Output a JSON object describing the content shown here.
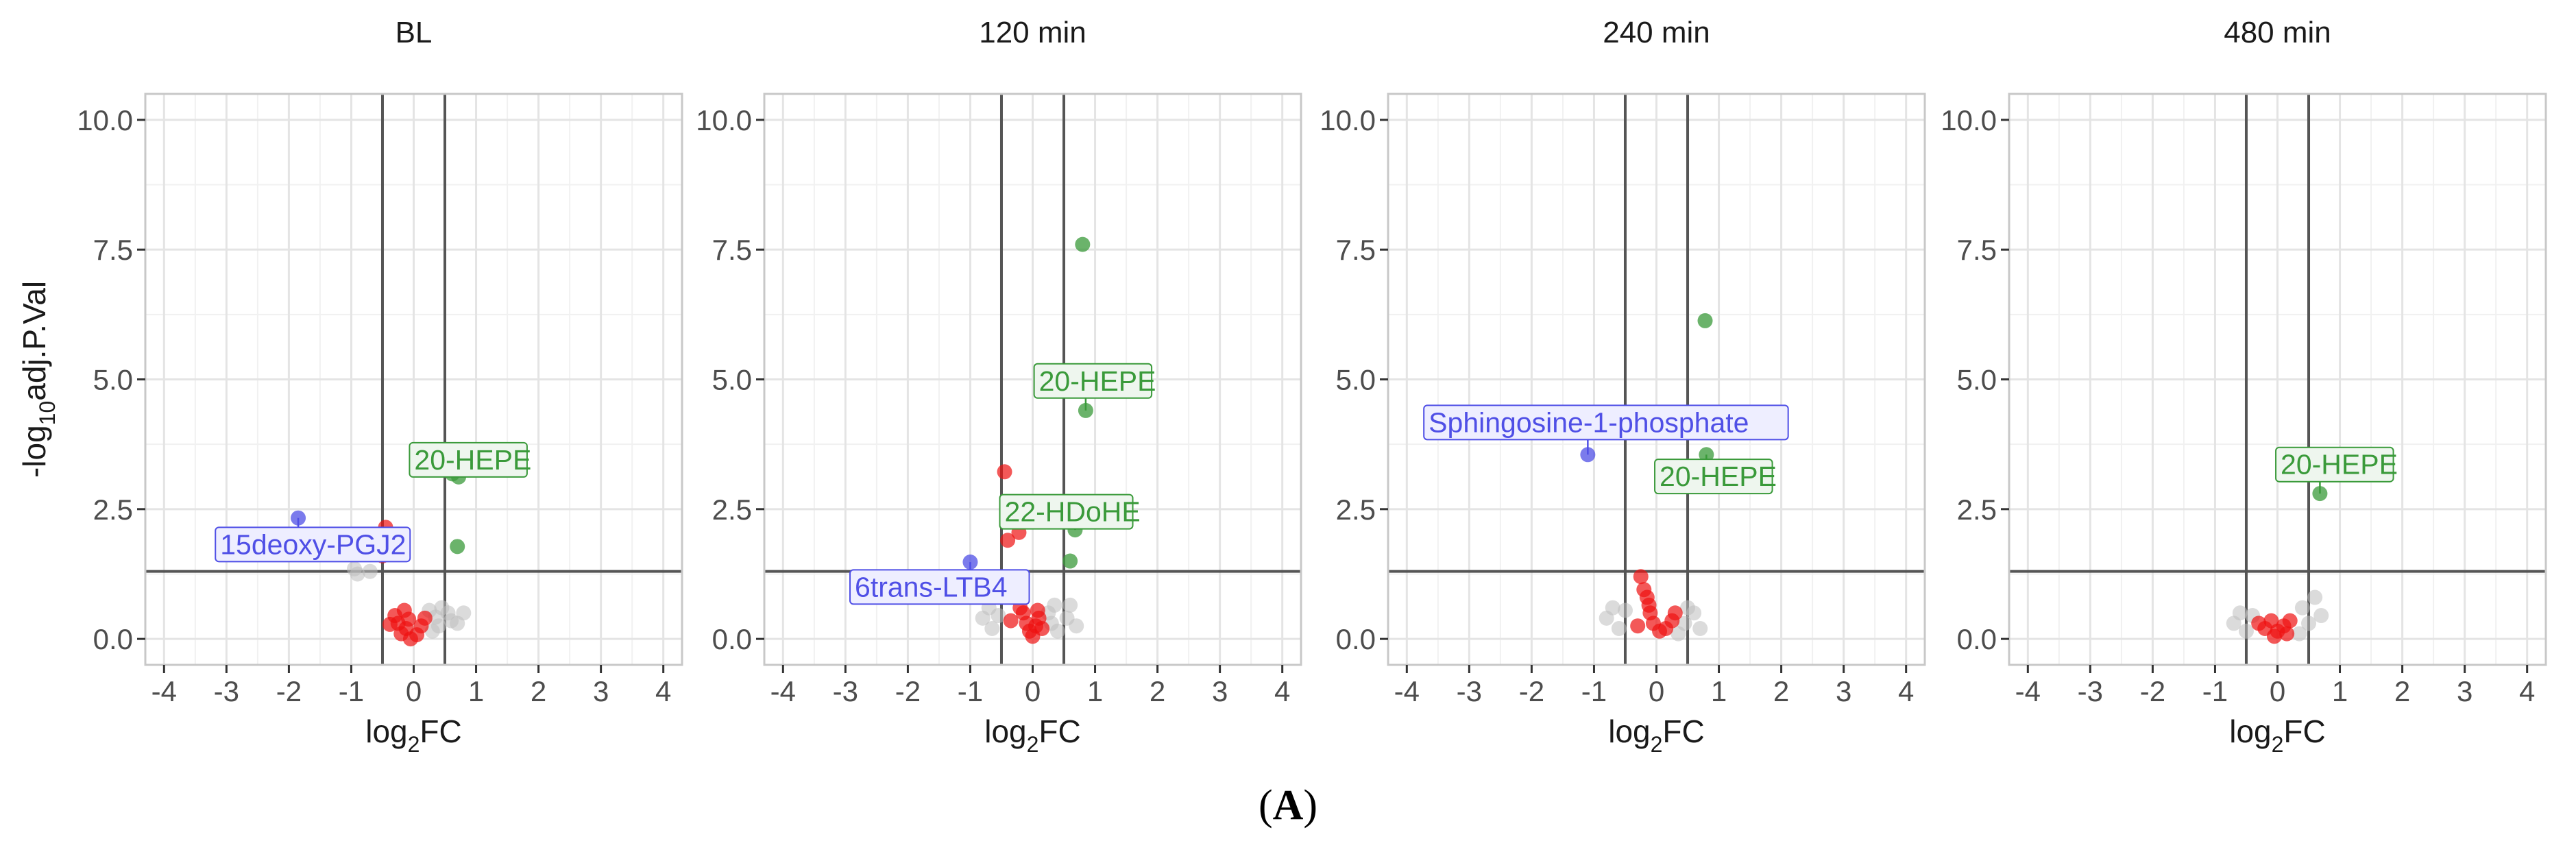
{
  "colors": {
    "up": "#3a9a3a",
    "down": "#4f4fe6",
    "ns_near": "#ee1111",
    "ns_far": "#bdbdbd",
    "threshold_line": "#555555",
    "grid_major": "#e4e4e4",
    "grid_minor": "#f1f1f1",
    "panel_border": "#c8c8c8",
    "label_up_fill": "#eef6ee",
    "label_down_fill": "#eeeeff"
  },
  "figure_label": {
    "open": "(",
    "letter": "A",
    "close": ")"
  },
  "chart_data": [
    {
      "type": "scatter",
      "title": "BL",
      "xlabel_main": "log",
      "xlabel_sub": "2",
      "xlabel_end": "FC",
      "ylabel_pre": "-log",
      "ylabel_sub": "10",
      "ylabel_post": "adj.P.Val",
      "xlim": [
        -4.3,
        4.3
      ],
      "ylim": [
        -0.5,
        10.5
      ],
      "xticks": [
        -4,
        -3,
        -2,
        -1,
        0,
        1,
        2,
        3,
        4
      ],
      "yticks": [
        0.0,
        2.5,
        5.0,
        7.5,
        10.0
      ],
      "ytick_labels": [
        "0.0",
        "2.5",
        "5.0",
        "7.5",
        "10.0"
      ],
      "thresholds": {
        "x": [
          -0.5,
          0.5
        ],
        "y": 1.301
      },
      "points": [
        {
          "x": -1.85,
          "y": 2.33,
          "group": "down"
        },
        {
          "x": 0.62,
          "y": 3.18,
          "group": "up"
        },
        {
          "x": 0.72,
          "y": 3.12,
          "group": "up"
        },
        {
          "x": 0.7,
          "y": 1.78,
          "group": "up"
        },
        {
          "x": -0.45,
          "y": 2.15,
          "group": "ns_near"
        },
        {
          "x": -0.5,
          "y": 1.6,
          "group": "ns_near"
        },
        {
          "x": -0.3,
          "y": 0.45,
          "group": "ns_near"
        },
        {
          "x": -0.25,
          "y": 0.3,
          "group": "ns_near"
        },
        {
          "x": -0.2,
          "y": 0.1,
          "group": "ns_near"
        },
        {
          "x": -0.12,
          "y": 0.2,
          "group": "ns_near"
        },
        {
          "x": -0.05,
          "y": 0.0,
          "group": "ns_near"
        },
        {
          "x": 0.05,
          "y": 0.08,
          "group": "ns_near"
        },
        {
          "x": 0.12,
          "y": 0.25,
          "group": "ns_near"
        },
        {
          "x": -0.15,
          "y": 0.55,
          "group": "ns_near"
        },
        {
          "x": -0.38,
          "y": 0.28,
          "group": "ns_near"
        },
        {
          "x": 0.18,
          "y": 0.4,
          "group": "ns_near"
        },
        {
          "x": -0.08,
          "y": 0.38,
          "group": "ns_near"
        },
        {
          "x": -0.95,
          "y": 1.35,
          "group": "ns_far"
        },
        {
          "x": -0.9,
          "y": 1.25,
          "group": "ns_far"
        },
        {
          "x": -0.7,
          "y": 1.3,
          "group": "ns_far"
        },
        {
          "x": 0.35,
          "y": 0.42,
          "group": "ns_far"
        },
        {
          "x": 0.4,
          "y": 0.25,
          "group": "ns_far"
        },
        {
          "x": 0.55,
          "y": 0.5,
          "group": "ns_far"
        },
        {
          "x": 0.6,
          "y": 0.35,
          "group": "ns_far"
        },
        {
          "x": 0.45,
          "y": 0.6,
          "group": "ns_far"
        },
        {
          "x": 0.3,
          "y": 0.15,
          "group": "ns_far"
        },
        {
          "x": 0.25,
          "y": 0.55,
          "group": "ns_far"
        },
        {
          "x": 0.8,
          "y": 0.5,
          "group": "ns_far"
        },
        {
          "x": 0.7,
          "y": 0.3,
          "group": "ns_far"
        }
      ],
      "labels": [
        {
          "text": "20-HEPE",
          "x": 0.01,
          "y": 3.45,
          "px": 0.67,
          "py": 3.15,
          "group": "up"
        },
        {
          "text": "15deoxy-PGJ2",
          "x": -3.1,
          "y": 1.82,
          "px": -1.85,
          "py": 2.33,
          "group": "down"
        }
      ]
    },
    {
      "type": "scatter",
      "title": "120 min",
      "xlabel_main": "log",
      "xlabel_sub": "2",
      "xlabel_end": "FC",
      "xlim": [
        -4.3,
        4.3
      ],
      "ylim": [
        -0.5,
        10.5
      ],
      "xticks": [
        -4,
        -3,
        -2,
        -1,
        0,
        1,
        2,
        3,
        4
      ],
      "yticks": [
        0.0,
        2.5,
        5.0,
        7.5,
        10.0
      ],
      "ytick_labels": [
        "0.0",
        "2.5",
        "5.0",
        "7.5",
        "10.0"
      ],
      "thresholds": {
        "x": [
          -0.5,
          0.5
        ],
        "y": 1.301
      },
      "points": [
        {
          "x": 0.8,
          "y": 7.6,
          "group": "up"
        },
        {
          "x": 0.85,
          "y": 4.4,
          "group": "up"
        },
        {
          "x": 0.68,
          "y": 2.1,
          "group": "up"
        },
        {
          "x": 0.6,
          "y": 1.5,
          "group": "up"
        },
        {
          "x": -1.0,
          "y": 1.48,
          "group": "down"
        },
        {
          "x": -0.45,
          "y": 3.22,
          "group": "ns_near"
        },
        {
          "x": -0.4,
          "y": 1.9,
          "group": "ns_near"
        },
        {
          "x": -0.22,
          "y": 2.05,
          "group": "ns_near"
        },
        {
          "x": -0.15,
          "y": 0.5,
          "group": "ns_near"
        },
        {
          "x": -0.1,
          "y": 0.3,
          "group": "ns_near"
        },
        {
          "x": -0.05,
          "y": 0.15,
          "group": "ns_near"
        },
        {
          "x": 0.0,
          "y": 0.05,
          "group": "ns_near"
        },
        {
          "x": 0.05,
          "y": 0.25,
          "group": "ns_near"
        },
        {
          "x": 0.1,
          "y": 0.4,
          "group": "ns_near"
        },
        {
          "x": -0.2,
          "y": 0.6,
          "group": "ns_near"
        },
        {
          "x": 0.15,
          "y": 0.2,
          "group": "ns_near"
        },
        {
          "x": -0.35,
          "y": 0.35,
          "group": "ns_near"
        },
        {
          "x": 0.08,
          "y": 0.55,
          "group": "ns_near"
        },
        {
          "x": -0.7,
          "y": 0.6,
          "group": "ns_far"
        },
        {
          "x": -0.8,
          "y": 0.4,
          "group": "ns_far"
        },
        {
          "x": -0.65,
          "y": 0.2,
          "group": "ns_far"
        },
        {
          "x": 0.3,
          "y": 0.3,
          "group": "ns_far"
        },
        {
          "x": 0.4,
          "y": 0.15,
          "group": "ns_far"
        },
        {
          "x": 0.55,
          "y": 0.4,
          "group": "ns_far"
        },
        {
          "x": 0.35,
          "y": 0.65,
          "group": "ns_far"
        },
        {
          "x": 0.7,
          "y": 0.25,
          "group": "ns_far"
        },
        {
          "x": 0.6,
          "y": 0.65,
          "group": "ns_far"
        },
        {
          "x": 0.25,
          "y": 0.5,
          "group": "ns_far"
        },
        {
          "x": -0.55,
          "y": 0.45,
          "group": "ns_far"
        }
      ],
      "labels": [
        {
          "text": "20-HEPE",
          "x": 0.1,
          "y": 4.97,
          "px": 0.85,
          "py": 4.4,
          "group": "up"
        },
        {
          "text": "22-HDoHE",
          "x": -0.45,
          "y": 2.45,
          "px": 0.68,
          "py": 2.1,
          "group": "up"
        },
        {
          "text": "6trans-LTB4",
          "x": -2.85,
          "y": 1.0,
          "px": -1.0,
          "py": 1.48,
          "group": "down"
        }
      ]
    },
    {
      "type": "scatter",
      "title": "240 min",
      "xlabel_main": "log",
      "xlabel_sub": "2",
      "xlabel_end": "FC",
      "xlim": [
        -4.3,
        4.3
      ],
      "ylim": [
        -0.5,
        10.5
      ],
      "xticks": [
        -4,
        -3,
        -2,
        -1,
        0,
        1,
        2,
        3,
        4
      ],
      "yticks": [
        0.0,
        2.5,
        5.0,
        7.5,
        10.0
      ],
      "ytick_labels": [
        "0.0",
        "2.5",
        "5.0",
        "7.5",
        "10.0"
      ],
      "thresholds": {
        "x": [
          -0.5,
          0.5
        ],
        "y": 1.301
      },
      "points": [
        {
          "x": 0.78,
          "y": 6.13,
          "group": "up"
        },
        {
          "x": 0.8,
          "y": 3.55,
          "group": "up"
        },
        {
          "x": -1.1,
          "y": 3.55,
          "group": "down"
        },
        {
          "x": -0.25,
          "y": 1.2,
          "group": "ns_near"
        },
        {
          "x": -0.2,
          "y": 0.95,
          "group": "ns_near"
        },
        {
          "x": -0.15,
          "y": 0.8,
          "group": "ns_near"
        },
        {
          "x": -0.1,
          "y": 0.5,
          "group": "ns_near"
        },
        {
          "x": -0.05,
          "y": 0.3,
          "group": "ns_near"
        },
        {
          "x": 0.05,
          "y": 0.15,
          "group": "ns_near"
        },
        {
          "x": 0.15,
          "y": 0.2,
          "group": "ns_near"
        },
        {
          "x": 0.25,
          "y": 0.35,
          "group": "ns_near"
        },
        {
          "x": -0.3,
          "y": 0.25,
          "group": "ns_near"
        },
        {
          "x": 0.3,
          "y": 0.5,
          "group": "ns_near"
        },
        {
          "x": -0.12,
          "y": 0.65,
          "group": "ns_near"
        },
        {
          "x": -0.7,
          "y": 0.6,
          "group": "ns_far"
        },
        {
          "x": -0.8,
          "y": 0.4,
          "group": "ns_far"
        },
        {
          "x": -0.6,
          "y": 0.2,
          "group": "ns_far"
        },
        {
          "x": 0.45,
          "y": 0.3,
          "group": "ns_far"
        },
        {
          "x": 0.6,
          "y": 0.5,
          "group": "ns_far"
        },
        {
          "x": 0.7,
          "y": 0.2,
          "group": "ns_far"
        },
        {
          "x": 0.5,
          "y": 0.6,
          "group": "ns_far"
        },
        {
          "x": 0.35,
          "y": 0.1,
          "group": "ns_far"
        },
        {
          "x": -0.5,
          "y": 0.55,
          "group": "ns_far"
        }
      ],
      "labels": [
        {
          "text": "Sphingosine-1-phosphate",
          "x": -3.65,
          "y": 4.17,
          "px": -1.1,
          "py": 3.55,
          "group": "down"
        },
        {
          "text": "20-HEPE",
          "x": 0.05,
          "y": 3.13,
          "px": 0.8,
          "py": 3.55,
          "group": "up"
        }
      ]
    },
    {
      "type": "scatter",
      "title": "480 min",
      "xlabel_main": "log",
      "xlabel_sub": "2",
      "xlabel_end": "FC",
      "xlim": [
        -4.3,
        4.3
      ],
      "ylim": [
        -0.5,
        10.5
      ],
      "xticks": [
        -4,
        -3,
        -2,
        -1,
        0,
        1,
        2,
        3,
        4
      ],
      "yticks": [
        0.0,
        2.5,
        5.0,
        7.5,
        10.0
      ],
      "ytick_labels": [
        "0.0",
        "2.5",
        "5.0",
        "7.5",
        "10.0"
      ],
      "thresholds": {
        "x": [
          -0.5,
          0.5
        ],
        "y": 1.301
      },
      "points": [
        {
          "x": 0.68,
          "y": 2.8,
          "group": "up"
        },
        {
          "x": -0.3,
          "y": 0.3,
          "group": "ns_near"
        },
        {
          "x": -0.2,
          "y": 0.2,
          "group": "ns_near"
        },
        {
          "x": -0.1,
          "y": 0.35,
          "group": "ns_near"
        },
        {
          "x": 0.0,
          "y": 0.15,
          "group": "ns_near"
        },
        {
          "x": 0.1,
          "y": 0.25,
          "group": "ns_near"
        },
        {
          "x": 0.2,
          "y": 0.35,
          "group": "ns_near"
        },
        {
          "x": -0.05,
          "y": 0.05,
          "group": "ns_near"
        },
        {
          "x": 0.15,
          "y": 0.1,
          "group": "ns_near"
        },
        {
          "x": -0.6,
          "y": 0.5,
          "group": "ns_far"
        },
        {
          "x": -0.7,
          "y": 0.3,
          "group": "ns_far"
        },
        {
          "x": -0.5,
          "y": 0.15,
          "group": "ns_far"
        },
        {
          "x": 0.4,
          "y": 0.6,
          "group": "ns_far"
        },
        {
          "x": 0.5,
          "y": 0.3,
          "group": "ns_far"
        },
        {
          "x": 0.6,
          "y": 0.8,
          "group": "ns_far"
        },
        {
          "x": 0.35,
          "y": 0.1,
          "group": "ns_far"
        },
        {
          "x": -0.4,
          "y": 0.45,
          "group": "ns_far"
        },
        {
          "x": 0.7,
          "y": 0.45,
          "group": "ns_far"
        }
      ],
      "labels": [
        {
          "text": "20-HEPE",
          "x": 0.05,
          "y": 3.36,
          "px": 0.68,
          "py": 2.8,
          "group": "up"
        }
      ]
    }
  ]
}
